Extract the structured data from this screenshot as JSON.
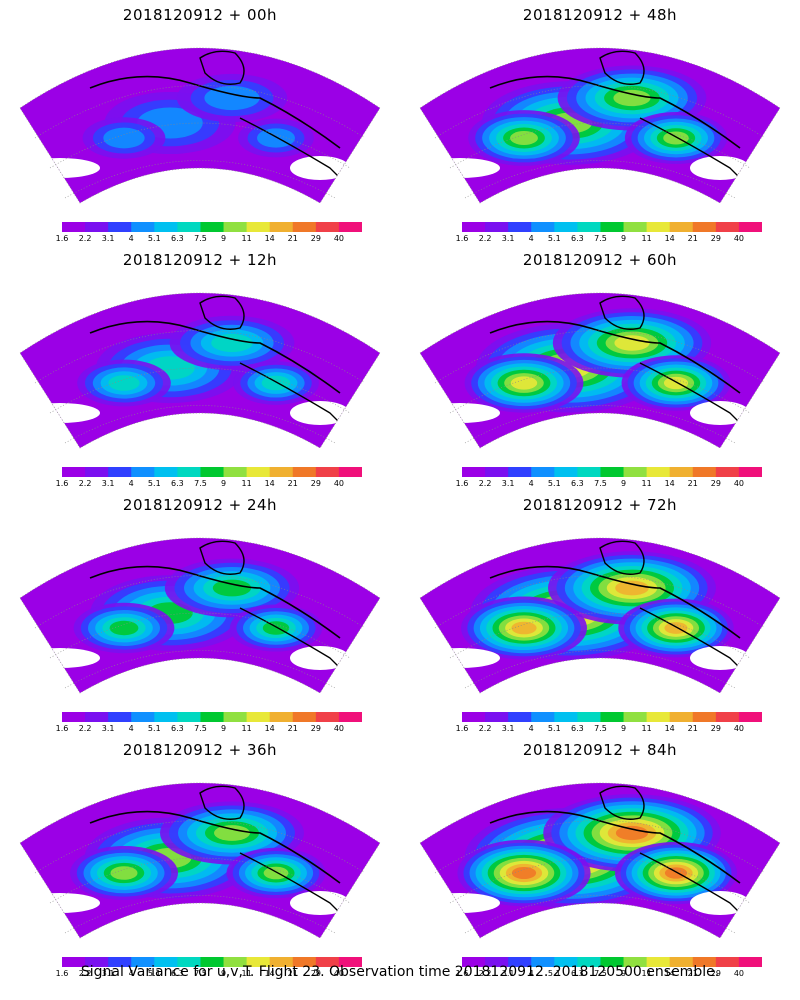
{
  "panels": [
    {
      "title": "2018120912 + 00h",
      "intensity": 0.15
    },
    {
      "title": "2018120912 + 48h",
      "intensity": 0.55
    },
    {
      "title": "2018120912 + 12h",
      "intensity": 0.3
    },
    {
      "title": "2018120912 + 60h",
      "intensity": 0.65
    },
    {
      "title": "2018120912 + 24h",
      "intensity": 0.4
    },
    {
      "title": "2018120912 + 72h",
      "intensity": 0.75
    },
    {
      "title": "2018120912 + 36h",
      "intensity": 0.5
    },
    {
      "title": "2018120912 + 84h",
      "intensity": 0.85
    }
  ],
  "colorbar": {
    "labels": [
      "1.6",
      "2.2",
      "3.1",
      "4",
      "5.1",
      "6.3",
      "7.5",
      "9",
      "11",
      "14",
      "21",
      "29",
      "40"
    ],
    "colors": [
      "#9b00e6",
      "#7a10f0",
      "#3040ff",
      "#1090ff",
      "#00c0f0",
      "#00d8c0",
      "#00c830",
      "#90e040",
      "#e8e838",
      "#f0b030",
      "#f07828",
      "#f04048",
      "#f0107a"
    ]
  },
  "caption": "Signal Variance for u,v,T. Flight 23. Observation time 2018120912. 2018120500 ensemble."
}
